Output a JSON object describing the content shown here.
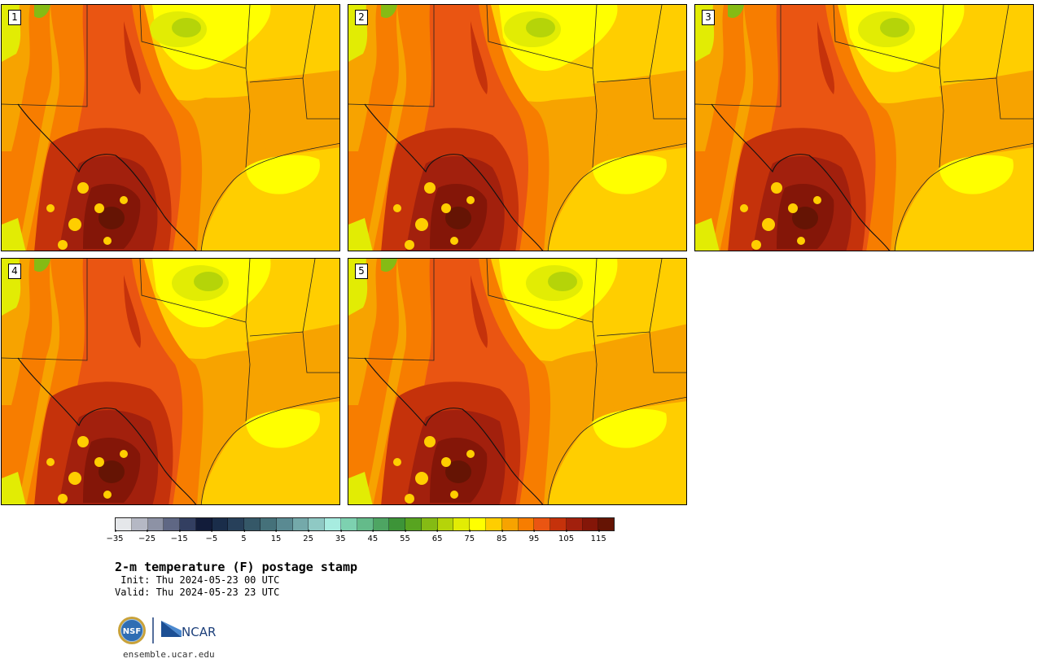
{
  "panels": [
    {
      "label": "1"
    },
    {
      "label": "2"
    },
    {
      "label": "3"
    },
    {
      "label": "4"
    },
    {
      "label": "5"
    }
  ],
  "colorbar": {
    "colors": [
      "#e5e7ea",
      "#b5b8c4",
      "#8d92a5",
      "#5f6784",
      "#333f61",
      "#121c3a",
      "#1a2d4a",
      "#27405a",
      "#355868",
      "#45717a",
      "#5a8a92",
      "#74a9aa",
      "#8fc9c4",
      "#a7ece0",
      "#7dd1b0",
      "#64bb8a",
      "#4ea563",
      "#3d9438",
      "#58a420",
      "#85bb14",
      "#b5d409",
      "#e2ec04",
      "#ffff00",
      "#ffce00",
      "#f7a300",
      "#f77d00",
      "#ea5512",
      "#c5320b",
      "#a2200d",
      "#841608",
      "#651404"
    ],
    "ticks": [
      "−35",
      "−25",
      "−15",
      "−5",
      "5",
      "15",
      "25",
      "35",
      "45",
      "55",
      "65",
      "75",
      "85",
      "95",
      "105",
      "115"
    ]
  },
  "title": "2-m temperature (F) postage stamp",
  "init": " Init: Thu 2024-05-23 00 UTC",
  "valid": "Valid: Thu 2024-05-23 23 UTC",
  "logos": {
    "nsf": "NSF",
    "ncar": "NCAR"
  },
  "site": "ensemble.ucar.edu"
}
